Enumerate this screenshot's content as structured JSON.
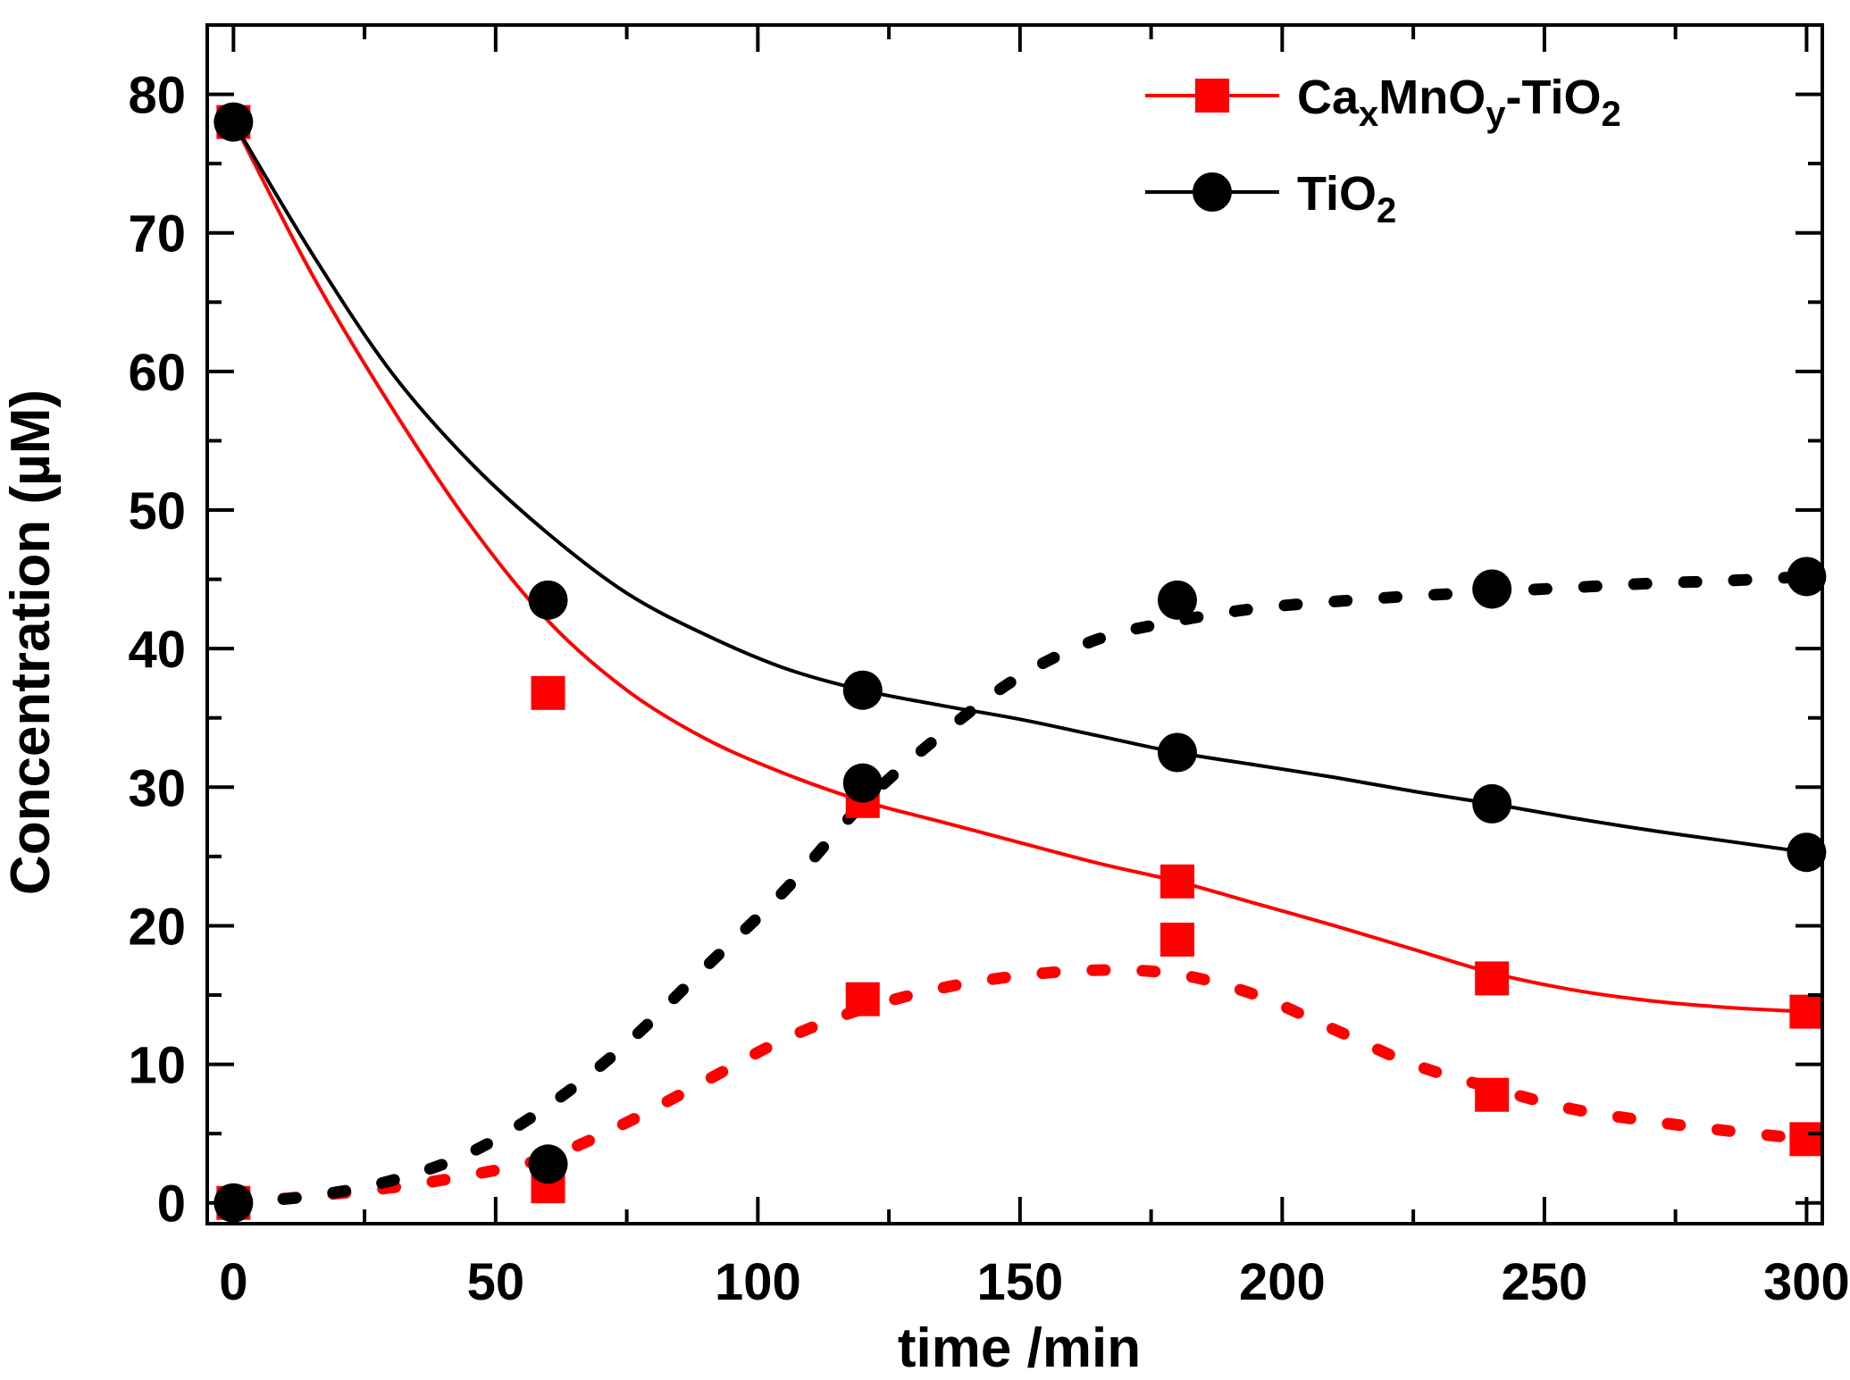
{
  "chart_data": {
    "type": "line",
    "title": "",
    "xlabel": "time /min",
    "ylabel": "Concentration (µM)",
    "xlim": [
      -5,
      303
    ],
    "ylim": [
      -1.5,
      85
    ],
    "x_ticks": [
      0,
      50,
      100,
      150,
      200,
      250,
      300
    ],
    "y_ticks": [
      0,
      10,
      20,
      30,
      40,
      50,
      60,
      70,
      80
    ],
    "legend_position": "top-right",
    "legend": [
      {
        "base": "Ca",
        "sub1": "x",
        "mid": "MnO",
        "sub2": "y",
        "tail": "-TiO",
        "sub3": "2",
        "color": "#ff0000",
        "marker": "square"
      },
      {
        "base": "TiO",
        "sub1": "2",
        "color": "#000000",
        "marker": "circle"
      }
    ],
    "series": [
      {
        "name": "CaxMnOy-TiO2 (decay)",
        "color": "#ff0000",
        "marker": "square",
        "line": "solid",
        "x": [
          0,
          60,
          120,
          180,
          240,
          300
        ],
        "values": [
          78,
          36.8,
          29,
          23.2,
          16.2,
          13.8
        ],
        "fit_x": [
          0,
          15,
          30,
          45,
          60,
          75,
          90,
          105,
          120,
          135,
          150,
          165,
          180,
          195,
          210,
          225,
          240,
          255,
          270,
          285,
          300
        ],
        "fit_y": [
          78,
          67,
          57.5,
          49,
          42,
          37,
          33.5,
          31,
          29,
          27.5,
          26,
          24.5,
          23.2,
          21.6,
          20,
          18.3,
          16.6,
          15.4,
          14.6,
          14.1,
          13.8
        ]
      },
      {
        "name": "TiO2 (decay)",
        "color": "#000000",
        "marker": "circle",
        "line": "solid",
        "x": [
          0,
          60,
          120,
          180,
          240,
          300
        ],
        "values": [
          78,
          43.5,
          37,
          32.5,
          28.8,
          25.3
        ],
        "fit_x": [
          0,
          15,
          30,
          45,
          60,
          75,
          90,
          105,
          120,
          135,
          150,
          165,
          180,
          195,
          210,
          225,
          240,
          255,
          270,
          285,
          300
        ],
        "fit_y": [
          78,
          68.5,
          60,
          53.5,
          48.3,
          44,
          41,
          38.6,
          37,
          35.9,
          34.9,
          33.7,
          32.5,
          31.6,
          30.7,
          29.7,
          28.8,
          27.8,
          26.9,
          26.1,
          25.3
        ]
      },
      {
        "name": "CaxMnOy-TiO2 (intermediate)",
        "color": "#ff0000",
        "marker": "square",
        "line": "dotted",
        "x": [
          0,
          60,
          120,
          180,
          240,
          300
        ],
        "values": [
          0,
          1.2,
          14.7,
          19,
          7.8,
          4.6
        ],
        "fit_x": [
          0,
          15,
          30,
          45,
          60,
          75,
          90,
          105,
          120,
          135,
          150,
          165,
          180,
          195,
          210,
          225,
          240,
          255,
          270,
          285,
          300
        ],
        "fit_y": [
          0,
          0.5,
          1.1,
          2,
          3.3,
          5.8,
          8.8,
          11.8,
          14,
          15.5,
          16.4,
          16.8,
          16.5,
          15,
          12.5,
          10,
          8.3,
          6.8,
          5.9,
          5.2,
          4.6
        ]
      },
      {
        "name": "TiO2 (intermediate)",
        "color": "#000000",
        "marker": "circle",
        "line": "dotted",
        "x": [
          0,
          60,
          120,
          180,
          240,
          300
        ],
        "values": [
          0,
          2.8,
          30.3,
          43.5,
          44.3,
          45.2
        ],
        "fit_x": [
          0,
          15,
          30,
          45,
          60,
          75,
          90,
          105,
          120,
          135,
          150,
          165,
          180,
          195,
          210,
          225,
          240,
          255,
          270,
          285,
          300
        ],
        "fit_y": [
          0,
          0.5,
          1.6,
          3.6,
          7,
          11.5,
          17,
          22.5,
          28.8,
          33.8,
          38,
          40.7,
          42,
          42.9,
          43.4,
          43.8,
          44.1,
          44.4,
          44.7,
          44.9,
          45.2
        ]
      }
    ]
  }
}
